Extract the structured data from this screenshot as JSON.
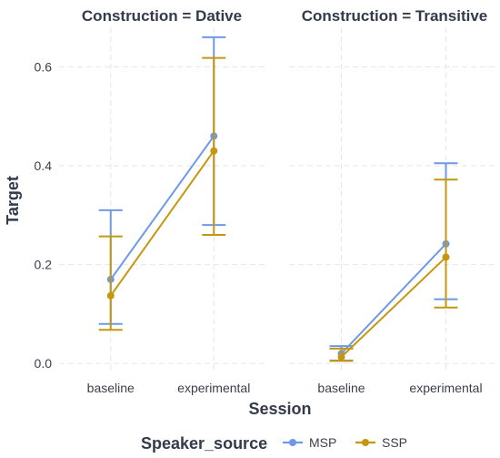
{
  "chart_data": {
    "type": "line",
    "xlabel": "Session",
    "ylabel": "Target",
    "ylim": [
      -0.02,
      0.68
    ],
    "yticks": [
      0.0,
      0.2,
      0.4,
      0.6
    ],
    "ytick_labels": [
      "0.0",
      "0.2",
      "0.4",
      "0.6"
    ],
    "categories": [
      "baseline",
      "experimental"
    ],
    "grid": true,
    "legend": {
      "title": "Speaker_source",
      "position": "bottom"
    },
    "panels": [
      {
        "title": "Construction = Dative",
        "series": [
          {
            "name": "MSP",
            "color": "#6e98e8",
            "values": [
              0.17,
              0.46
            ],
            "lower": [
              0.08,
              0.28
            ],
            "upper": [
              0.31,
              0.66
            ]
          },
          {
            "name": "SSP",
            "color": "#c5970f",
            "values": [
              0.137,
              0.43
            ],
            "lower": [
              0.068,
              0.26
            ],
            "upper": [
              0.257,
              0.618
            ]
          }
        ]
      },
      {
        "title": "Construction = Transitive",
        "series": [
          {
            "name": "MSP",
            "color": "#6e98e8",
            "values": [
              0.02,
              0.242
            ],
            "lower": [
              0.006,
              0.13
            ],
            "upper": [
              0.035,
              0.405
            ]
          },
          {
            "name": "SSP",
            "color": "#c5970f",
            "values": [
              0.013,
              0.215
            ],
            "lower": [
              0.005,
              0.113
            ],
            "upper": [
              0.03,
              0.372
            ]
          }
        ]
      }
    ]
  }
}
